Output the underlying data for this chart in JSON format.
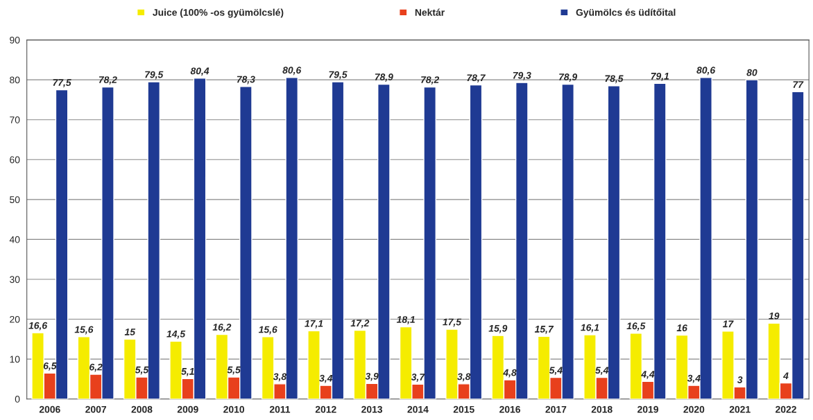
{
  "chart_data": {
    "type": "bar",
    "categories": [
      "2006",
      "2007",
      "2008",
      "2009",
      "2010",
      "2011",
      "2012",
      "2013",
      "2014",
      "2015",
      "2016",
      "2017",
      "2018",
      "2019",
      "2020",
      "2021",
      "2022"
    ],
    "series": [
      {
        "name": "Juice (100% -os gyümölcslé)",
        "color": "#f5ec00",
        "values": [
          16.6,
          15.6,
          15,
          14.5,
          16.2,
          15.6,
          17.1,
          17.2,
          18.1,
          17.5,
          15.9,
          15.7,
          16.1,
          16.5,
          16,
          17,
          19
        ],
        "value_labels": [
          "16,6",
          "15,6",
          "15",
          "14,5",
          "16,2",
          "15,6",
          "17,1",
          "17,2",
          "18,1",
          "17,5",
          "15,9",
          "15,7",
          "16,1",
          "16,5",
          "16",
          "17",
          "19"
        ]
      },
      {
        "name": "Nektár",
        "color": "#e8401c",
        "values": [
          6.5,
          6.2,
          5.5,
          5.1,
          5.5,
          3.8,
          3.4,
          3.9,
          3.7,
          3.8,
          4.8,
          5.4,
          5.4,
          4.4,
          3.4,
          3,
          4
        ],
        "value_labels": [
          "6,5",
          "6,2",
          "5,5",
          "5,1",
          "5,5",
          "3,8",
          "3,4",
          "3,9",
          "3,7",
          "3,8",
          "4,8",
          "5,4",
          "5,4",
          "4,4",
          "3,4",
          "3",
          "4"
        ]
      },
      {
        "name": "Gyümölcs és üdítőital",
        "color": "#1f3a93",
        "values": [
          77.5,
          78.2,
          79.5,
          80.4,
          78.3,
          80.6,
          79.5,
          78.9,
          78.2,
          78.7,
          79.3,
          78.9,
          78.5,
          79.1,
          80.6,
          80,
          77
        ],
        "value_labels": [
          "77,5",
          "78,2",
          "79,5",
          "80,4",
          "78,3",
          "80,6",
          "79,5",
          "78,9",
          "78,2",
          "78,7",
          "79,3",
          "78,9",
          "78,5",
          "79,1",
          "80,6",
          "80",
          "77"
        ]
      }
    ],
    "ylim": [
      0,
      90
    ],
    "yticks": [
      0,
      10,
      20,
      30,
      40,
      50,
      60,
      70,
      80,
      90
    ],
    "grid": "y",
    "legend": "top"
  }
}
